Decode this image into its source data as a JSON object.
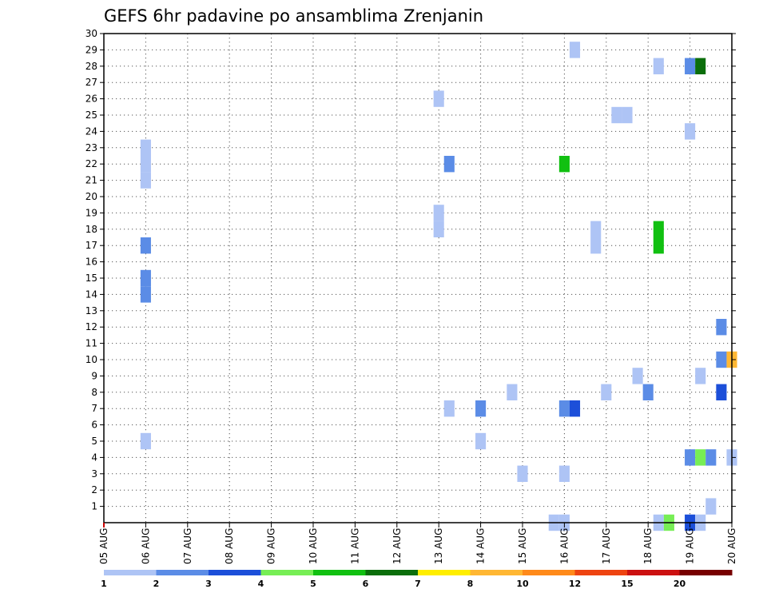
{
  "chart_data": {
    "type": "heatmap",
    "title": "GEFS 6hr padavine po ansamblima Zrenjanin",
    "x_ticks": [
      "05 AUG",
      "06 AUG",
      "07 AUG",
      "08 AUG",
      "09 AUG",
      "10 AUG",
      "11 AUG",
      "12 AUG",
      "13 AUG",
      "14 AUG",
      "15 AUG",
      "16 AUG",
      "17 AUG",
      "18 AUG",
      "19 AUG",
      "20 AUG"
    ],
    "x_range": [
      "05 AUG 00Z",
      "20 AUG 00Z"
    ],
    "y_ticks": [
      1,
      2,
      3,
      4,
      5,
      6,
      7,
      8,
      9,
      10,
      11,
      12,
      13,
      14,
      15,
      16,
      17,
      18,
      19,
      20,
      21,
      22,
      23,
      24,
      25,
      26,
      27,
      28,
      29,
      30
    ],
    "y_range": [
      0,
      30
    ],
    "y_meaning": "ensemble member",
    "grid": true,
    "colorbar": {
      "labels": [
        "1",
        "2",
        "3",
        "4",
        "5",
        "6",
        "7",
        "8",
        "10",
        "12",
        "15",
        "20"
      ],
      "colors": [
        "#aec4f5",
        "#5b8ce6",
        "#1c4fd9",
        "#77ee55",
        "#11c011",
        "#0b6e0b",
        "#ffee00",
        "#ffb733",
        "#ff8a1a",
        "#ee4411",
        "#cc1111",
        "#770000"
      ]
    },
    "cells": [
      {
        "t": 1.0,
        "m": 5,
        "v": 1.5
      },
      {
        "t": 1.0,
        "m": 14,
        "v": 2.5
      },
      {
        "t": 1.0,
        "m": 15,
        "v": 2.5
      },
      {
        "t": 1.0,
        "m": 17,
        "v": 2.5
      },
      {
        "t": 1.0,
        "m": 21,
        "v": 1.5
      },
      {
        "t": 1.0,
        "m": 22,
        "v": 1.5
      },
      {
        "t": 1.0,
        "m": 23,
        "v": 1.5
      },
      {
        "t": 8.0,
        "m": 18,
        "v": 1.5
      },
      {
        "t": 8.0,
        "m": 19,
        "v": 1.5
      },
      {
        "t": 8.0,
        "m": 26,
        "v": 1.5
      },
      {
        "t": 8.25,
        "m": 7,
        "v": 1.5
      },
      {
        "t": 8.25,
        "m": 22,
        "v": 2.5
      },
      {
        "t": 9.0,
        "m": 5,
        "v": 1.5
      },
      {
        "t": 9.0,
        "m": 7,
        "v": 2.5
      },
      {
        "t": 9.75,
        "m": 8,
        "v": 1.5
      },
      {
        "t": 10.0,
        "m": 3,
        "v": 1.5
      },
      {
        "t": 10.75,
        "m": 0,
        "v": 1.5
      },
      {
        "t": 11.0,
        "m": 0,
        "v": 1.5
      },
      {
        "t": 11.0,
        "m": 3,
        "v": 1.5
      },
      {
        "t": 11.0,
        "m": 7,
        "v": 2.5
      },
      {
        "t": 11.0,
        "m": 22,
        "v": 5.5
      },
      {
        "t": 11.25,
        "m": 7,
        "v": 3.5
      },
      {
        "t": 11.25,
        "m": 29,
        "v": 1.5
      },
      {
        "t": 11.75,
        "m": 17,
        "v": 1.5
      },
      {
        "t": 11.75,
        "m": 18,
        "v": 1.5
      },
      {
        "t": 12.0,
        "m": 8,
        "v": 1.5
      },
      {
        "t": 12.25,
        "m": 25,
        "v": 1.5
      },
      {
        "t": 12.5,
        "m": 25,
        "v": 1.5
      },
      {
        "t": 12.75,
        "m": 9,
        "v": 1.5
      },
      {
        "t": 13.0,
        "m": 8,
        "v": 2.5
      },
      {
        "t": 13.25,
        "m": 0,
        "v": 1.5
      },
      {
        "t": 13.25,
        "m": 17,
        "v": 5.5
      },
      {
        "t": 13.25,
        "m": 18,
        "v": 5.5
      },
      {
        "t": 13.25,
        "m": 28,
        "v": 1.5
      },
      {
        "t": 13.5,
        "m": 0,
        "v": 4.5
      },
      {
        "t": 14.0,
        "m": 0,
        "v": 3.5
      },
      {
        "t": 14.0,
        "m": 4,
        "v": 2.5
      },
      {
        "t": 14.0,
        "m": 24,
        "v": 1.5
      },
      {
        "t": 14.0,
        "m": 28,
        "v": 2.5
      },
      {
        "t": 14.25,
        "m": 0,
        "v": 1.5
      },
      {
        "t": 14.25,
        "m": 4,
        "v": 4.5
      },
      {
        "t": 14.25,
        "m": 9,
        "v": 1.5
      },
      {
        "t": 14.25,
        "m": 28,
        "v": 6.5
      },
      {
        "t": 14.5,
        "m": 1,
        "v": 1.5
      },
      {
        "t": 14.5,
        "m": 4,
        "v": 2.5
      },
      {
        "t": 14.75,
        "m": 8,
        "v": 3.5
      },
      {
        "t": 14.75,
        "m": 10,
        "v": 2.5
      },
      {
        "t": 14.75,
        "m": 12,
        "v": 2.5
      },
      {
        "t": 15.0,
        "m": 4,
        "v": 1.5
      },
      {
        "t": 15.0,
        "m": 10,
        "v": 8.5
      }
    ]
  }
}
